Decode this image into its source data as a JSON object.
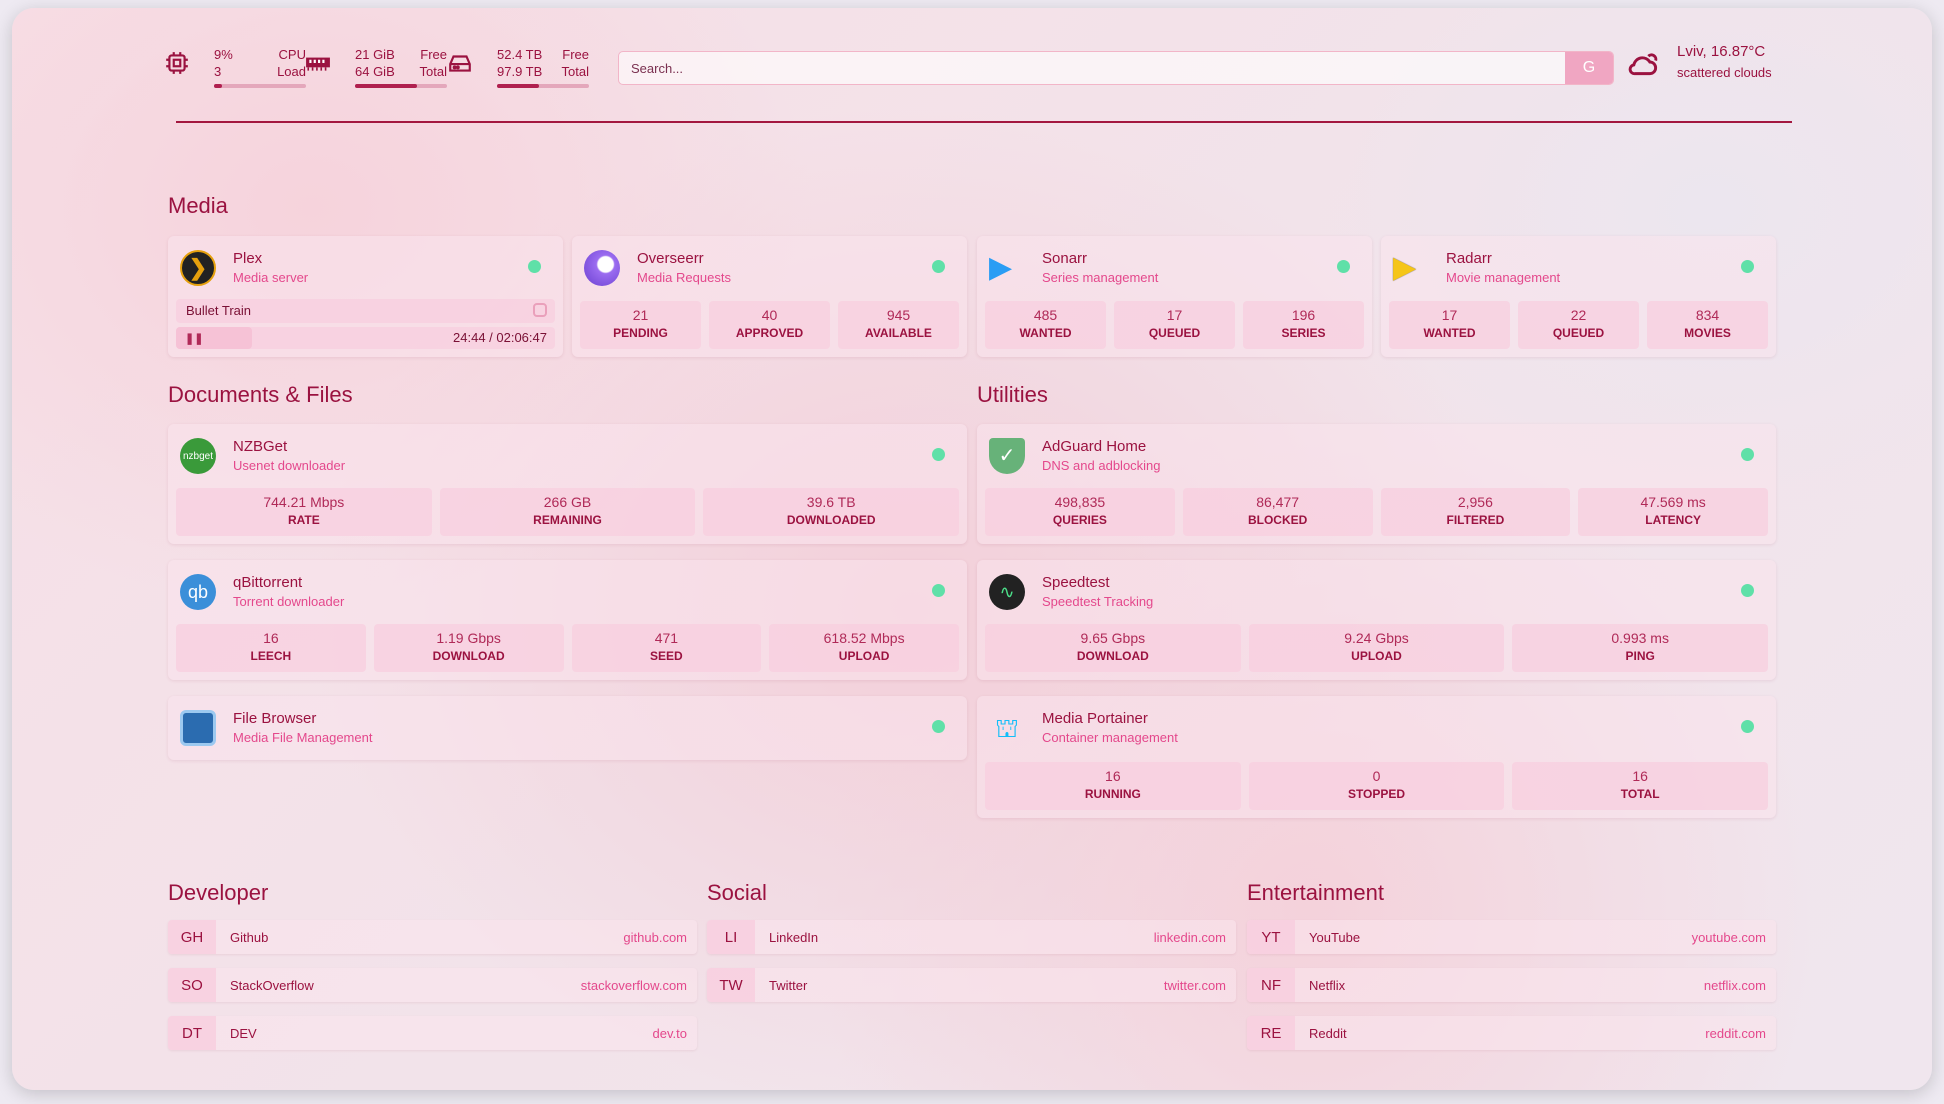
{
  "header": {
    "cpu": {
      "value": "9%",
      "label": "CPU",
      "sub_value": "3",
      "sub_label": "Load",
      "percent": 9
    },
    "memory": {
      "value": "21 GiB",
      "label": "Free",
      "sub_value": "64 GiB",
      "sub_label": "Total",
      "percent": 67
    },
    "disk": {
      "value": "52.4 TB",
      "label": "Free",
      "sub_value": "97.9 TB",
      "sub_label": "Total",
      "percent": 46
    },
    "search": {
      "placeholder": "Search...",
      "button": "G"
    },
    "weather": {
      "location": "Lviv, 16.87°C",
      "condition": "scattered clouds",
      "icon": "cloud-sun-icon"
    }
  },
  "colors": {
    "accent": "#9b1240",
    "subtitle": "#e4488c",
    "status_ok": "#5fe0a8"
  },
  "media": {
    "title": "Media",
    "cards": [
      {
        "name": "Plex",
        "desc": "Media server",
        "now_playing": "Bullet Train",
        "time": "24:44 / 02:06:47"
      },
      {
        "name": "Overseerr",
        "desc": "Media Requests",
        "stats": [
          {
            "v": "21",
            "l": "PENDING"
          },
          {
            "v": "40",
            "l": "APPROVED"
          },
          {
            "v": "945",
            "l": "AVAILABLE"
          }
        ]
      },
      {
        "name": "Sonarr",
        "desc": "Series management",
        "stats": [
          {
            "v": "485",
            "l": "WANTED"
          },
          {
            "v": "17",
            "l": "QUEUED"
          },
          {
            "v": "196",
            "l": "SERIES"
          }
        ]
      },
      {
        "name": "Radarr",
        "desc": "Movie management",
        "stats": [
          {
            "v": "17",
            "l": "WANTED"
          },
          {
            "v": "22",
            "l": "QUEUED"
          },
          {
            "v": "834",
            "l": "MOVIES"
          }
        ]
      }
    ]
  },
  "docs": {
    "title": "Documents & Files",
    "cards": [
      {
        "name": "NZBGet",
        "desc": "Usenet downloader",
        "icon_text": "nzbget",
        "stats": [
          {
            "v": "744.21 Mbps",
            "l": "RATE"
          },
          {
            "v": "266 GB",
            "l": "REMAINING"
          },
          {
            "v": "39.6 TB",
            "l": "DOWNLOADED"
          }
        ]
      },
      {
        "name": "qBittorrent",
        "desc": "Torrent downloader",
        "icon_text": "qb",
        "stats": [
          {
            "v": "16",
            "l": "LEECH"
          },
          {
            "v": "1.19 Gbps",
            "l": "DOWNLOAD"
          },
          {
            "v": "471",
            "l": "SEED"
          },
          {
            "v": "618.52 Mbps",
            "l": "UPLOAD"
          }
        ]
      },
      {
        "name": "File Browser",
        "desc": "Media File Management"
      }
    ]
  },
  "utilities": {
    "title": "Utilities",
    "cards": [
      {
        "name": "AdGuard Home",
        "desc": "DNS and adblocking",
        "stats": [
          {
            "v": "498,835",
            "l": "QUERIES"
          },
          {
            "v": "86,477",
            "l": "BLOCKED"
          },
          {
            "v": "2,956",
            "l": "FILTERED"
          },
          {
            "v": "47.569 ms",
            "l": "LATENCY"
          }
        ]
      },
      {
        "name": "Speedtest",
        "desc": "Speedtest Tracking",
        "stats": [
          {
            "v": "9.65 Gbps",
            "l": "DOWNLOAD"
          },
          {
            "v": "9.24 Gbps",
            "l": "UPLOAD"
          },
          {
            "v": "0.993 ms",
            "l": "PING"
          }
        ]
      },
      {
        "name": "Media Portainer",
        "desc": "Container management",
        "stats": [
          {
            "v": "16",
            "l": "RUNNING"
          },
          {
            "v": "0",
            "l": "STOPPED"
          },
          {
            "v": "16",
            "l": "TOTAL"
          }
        ]
      }
    ]
  },
  "bookmarks": [
    {
      "title": "Developer",
      "items": [
        {
          "ab": "GH",
          "name": "Github",
          "url": "github.com"
        },
        {
          "ab": "SO",
          "name": "StackOverflow",
          "url": "stackoverflow.com"
        },
        {
          "ab": "DT",
          "name": "DEV",
          "url": "dev.to"
        }
      ]
    },
    {
      "title": "Social",
      "items": [
        {
          "ab": "LI",
          "name": "LinkedIn",
          "url": "linkedin.com"
        },
        {
          "ab": "TW",
          "name": "Twitter",
          "url": "twitter.com"
        }
      ]
    },
    {
      "title": "Entertainment",
      "items": [
        {
          "ab": "YT",
          "name": "YouTube",
          "url": "youtube.com"
        },
        {
          "ab": "NF",
          "name": "Netflix",
          "url": "netflix.com"
        },
        {
          "ab": "RE",
          "name": "Reddit",
          "url": "reddit.com"
        }
      ]
    }
  ]
}
